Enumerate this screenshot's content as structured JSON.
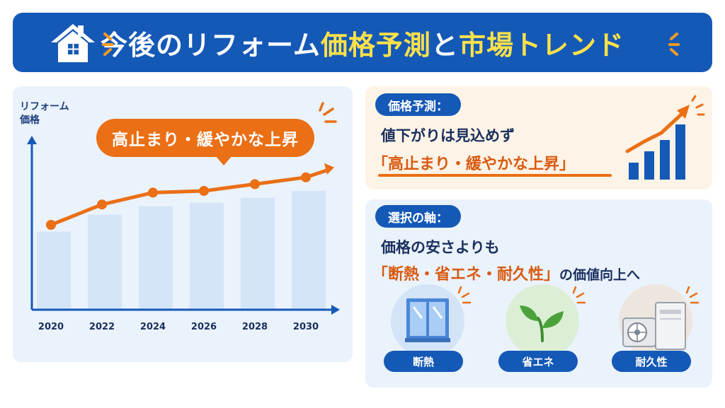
{
  "header": {
    "title_part1": "今後のリフォーム",
    "title_part2": "価格予測",
    "title_part3": "と",
    "title_part4": "市場トレンド"
  },
  "chart_panel": {
    "callout": "高止まり・緩やかな上昇"
  },
  "chart_data": {
    "type": "line",
    "ylabel": "リフォーム\n価格",
    "ylabel_line1": "リフォーム",
    "ylabel_line2": "価格",
    "categories": [
      "2020",
      "2022",
      "2024",
      "2026",
      "2028",
      "2030"
    ],
    "series": [
      {
        "values": [
          50,
          62,
          69,
          70,
          74,
          78
        ]
      }
    ],
    "bar_values": [
      46,
      56,
      61,
      63,
      66,
      70
    ],
    "ylim": [
      0,
      100
    ],
    "grid": false,
    "colors": {
      "line": "#ea6f15",
      "bars": "#d5e5f8",
      "axis": "#1559b7"
    }
  },
  "card_forecast": {
    "pill": "価格予測：",
    "line1": "値下がりは見込めず",
    "line2": "「高止まり・緩やかな上昇」"
  },
  "card_axis": {
    "pill": "選択の軸：",
    "line1": "価格の安さよりも",
    "line2_highlight": "「断熱・省エネ・耐久性」",
    "line2_tail": "の価値向上へ"
  },
  "features": [
    {
      "label": "断熱",
      "icon": "window-icon"
    },
    {
      "label": "省エネ",
      "icon": "leaf-icon"
    },
    {
      "label": "耐久性",
      "icon": "air-conditioner-unit-icon"
    }
  ],
  "colors": {
    "primary": "#1559b7",
    "accent": "#ea6f15",
    "highlight": "#ffe14a"
  }
}
